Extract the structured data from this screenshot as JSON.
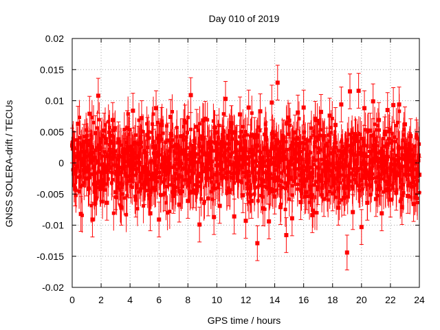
{
  "chart_data": {
    "type": "scatter",
    "title": "Day 010 of 2019",
    "xlabel": "GPS time / hours",
    "ylabel": "GNSS SOLERA-drift / TECUs",
    "xlim": [
      0,
      24
    ],
    "ylim": [
      -0.02,
      0.02
    ],
    "x_ticks": [
      "0",
      "2",
      "4",
      "6",
      "8",
      "10",
      "12",
      "14",
      "16",
      "18",
      "20",
      "22",
      "24"
    ],
    "x_tick_values": [
      0,
      2,
      4,
      6,
      8,
      10,
      12,
      14,
      16,
      18,
      20,
      22,
      24
    ],
    "y_ticks": [
      "0.02",
      "0.015",
      "0.01",
      "0.005",
      "0",
      "-0.005",
      "-0.01",
      "-0.015",
      "-0.02"
    ],
    "y_tick_values": [
      0.02,
      0.015,
      0.01,
      0.005,
      0,
      -0.005,
      -0.01,
      -0.015,
      -0.02
    ],
    "grid": true,
    "series_color": "#ff0000",
    "series": [
      {
        "name": "SOLERA-drift",
        "description_note": "dense series with error bars; representative sampled points",
        "x": [
          0.0,
          0.2,
          0.4,
          0.6,
          0.8,
          1.0,
          1.2,
          1.4,
          1.6,
          1.8,
          2.0,
          2.2,
          2.4,
          2.6,
          2.8,
          3.0,
          3.2,
          3.4,
          3.6,
          3.8,
          4.0,
          4.2,
          4.4,
          4.6,
          4.8,
          5.0,
          5.2,
          5.4,
          5.6,
          5.8,
          6.0,
          6.2,
          6.4,
          6.6,
          6.8,
          7.0,
          7.2,
          7.4,
          7.6,
          7.8,
          8.0,
          8.2,
          8.4,
          8.6,
          8.8,
          9.0,
          9.2,
          9.4,
          9.6,
          9.8,
          10.0,
          10.2,
          10.4,
          10.6,
          10.8,
          11.0,
          11.2,
          11.4,
          11.6,
          11.8,
          12.0,
          12.2,
          12.4,
          12.6,
          12.8,
          13.0,
          13.2,
          13.4,
          13.6,
          13.8,
          14.0,
          14.2,
          14.4,
          14.6,
          14.8,
          15.0,
          15.2,
          15.4,
          15.6,
          15.8,
          16.0,
          16.2,
          16.4,
          16.6,
          16.8,
          17.0,
          17.2,
          17.4,
          17.6,
          17.8,
          18.0,
          18.2,
          18.4,
          18.6,
          18.8,
          19.0,
          19.2,
          19.4,
          19.6,
          19.8,
          20.0,
          20.2,
          20.4,
          20.6,
          20.8,
          21.0,
          21.2,
          21.4,
          21.6,
          21.8,
          22.0,
          22.2,
          22.4,
          22.6,
          22.8,
          23.0,
          23.2,
          23.4,
          23.6,
          23.8,
          24.0
        ],
        "values": [
          0.0028,
          -0.0041,
          0.0063,
          -0.0082,
          0.0034,
          -0.0025,
          0.0079,
          -0.0091,
          0.0048,
          0.0108,
          -0.0033,
          0.0052,
          -0.0064,
          0.0021,
          0.0069,
          -0.0047,
          0.0038,
          -0.0072,
          0.0011,
          0.0056,
          -0.0028,
          0.0084,
          -0.0059,
          0.0031,
          0.0072,
          -0.0039,
          0.0045,
          -0.0081,
          0.0026,
          0.0088,
          -0.0091,
          0.0061,
          -0.0049,
          0.0036,
          0.0074,
          -0.0053,
          0.0029,
          -0.0067,
          0.0043,
          0.0065,
          -0.0061,
          0.0109,
          -0.0044,
          0.0058,
          -0.0099,
          0.0039,
          0.0071,
          -0.0057,
          0.0024,
          -0.0087,
          0.0049,
          -0.0069,
          0.0031,
          0.0103,
          -0.0041,
          0.0064,
          -0.0086,
          0.0032,
          0.0078,
          -0.0052,
          -0.0093,
          0.0089,
          -0.0061,
          0.0045,
          -0.0129,
          0.0083,
          -0.0073,
          0.0038,
          -0.0094,
          0.0097,
          -0.0054,
          0.0129,
          -0.0071,
          0.0041,
          -0.0116,
          0.0068,
          -0.0089,
          0.0049,
          0.0081,
          -0.0063,
          0.0089,
          -0.0047,
          0.0036,
          -0.0084,
          0.0071,
          -0.0039,
          0.0082,
          -0.0058,
          0.0028,
          0.0076,
          -0.0049,
          0.0061,
          -0.0072,
          0.0094,
          -0.0056,
          -0.0144,
          0.0115,
          -0.0079,
          0.0041,
          0.0116,
          -0.0103,
          0.0088,
          -0.0064,
          0.0052,
          0.0099,
          -0.0058,
          0.0069,
          -0.0081,
          0.0046,
          0.0085,
          -0.0059,
          0.0093,
          -0.0048,
          0.0094,
          -0.0071,
          0.0062,
          -0.0053,
          0.0043,
          -0.0066,
          0.0041,
          -0.0019
        ],
        "error": 0.0028
      }
    ]
  }
}
